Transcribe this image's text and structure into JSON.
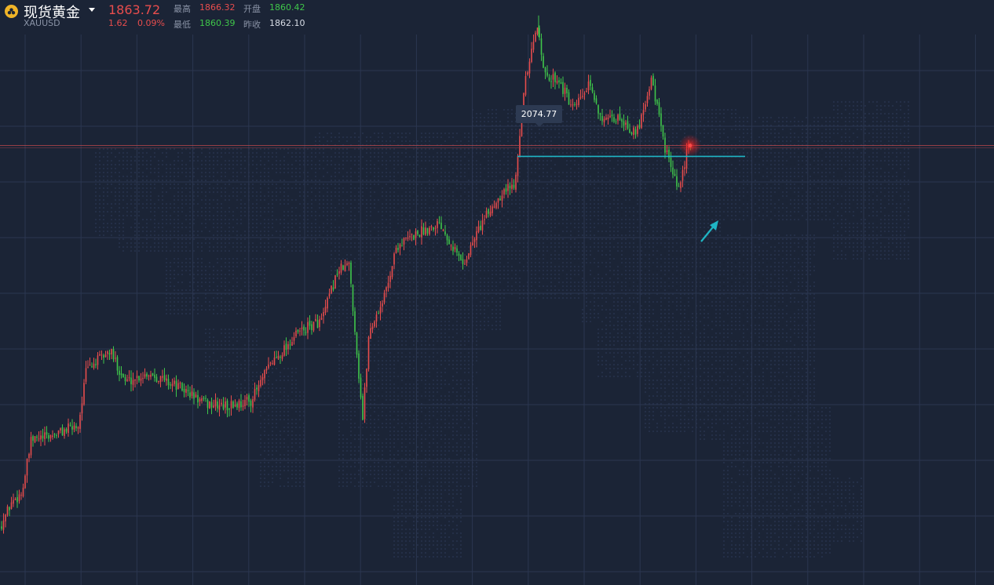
{
  "header": {
    "title": "现货黄金",
    "symbol": "XAUUSD",
    "logo_icon": "gold-coins-icon",
    "dropdown_icon": "caret-down-icon",
    "price": "1863.72",
    "change": "1.62",
    "change_pct": "0.09%",
    "high_label": "最高",
    "high_value": "1866.32",
    "open_label": "开盘",
    "open_value": "1860.42",
    "low_label": "最低",
    "low_value": "1860.39",
    "prev_close_label": "昨收",
    "prev_close_value": "1862.10"
  },
  "chart_data": {
    "type": "candlestick",
    "peak_label": "2074.77",
    "ylim": [
      1150,
      2100
    ],
    "support_level": 1860,
    "current_price": 1863.72,
    "outlook": "up-arrow",
    "colors": {
      "up": "#e84d4d",
      "down": "#3fc64a",
      "support": "#1fb5c4",
      "price_line": "#c0484d",
      "grid": "#2b3650"
    }
  }
}
